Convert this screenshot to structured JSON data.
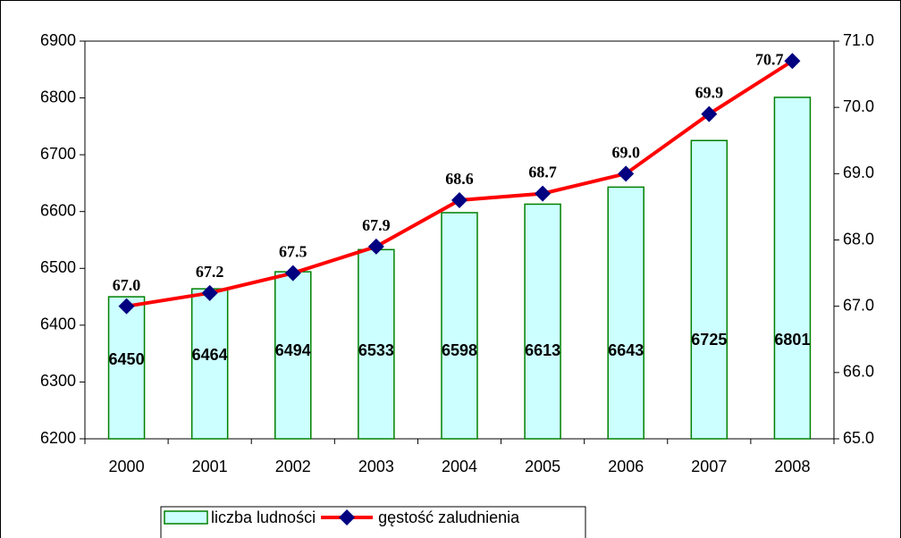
{
  "chart_data": {
    "type": "bar_line",
    "categories": [
      "2000",
      "2001",
      "2002",
      "2003",
      "2004",
      "2005",
      "2006",
      "2007",
      "2008"
    ],
    "series": [
      {
        "name": "liczba ludności",
        "type": "bar",
        "axis": "y",
        "color": "#ccffff",
        "edgecolor": "#008000",
        "values": [
          6450,
          6464,
          6494,
          6533,
          6598,
          6613,
          6643,
          6725,
          6801
        ]
      },
      {
        "name": "gęstość zaludnienia",
        "type": "line",
        "axis": "y2",
        "color": "#ff0000",
        "marker_color": "#000080",
        "values": [
          67.0,
          67.2,
          67.5,
          67.9,
          68.6,
          68.7,
          69.0,
          69.9,
          70.7
        ],
        "value_labels": [
          "67.0",
          "67.2",
          "67.5",
          "67.9",
          "68.6",
          "68.7",
          "69.0",
          "69.9",
          "70.7"
        ]
      }
    ],
    "ylim": [
      6200,
      6900
    ],
    "yticks": [
      6200,
      6300,
      6400,
      6500,
      6600,
      6700,
      6800,
      6900
    ],
    "y2lim": [
      65,
      71
    ],
    "y2ticks": [
      {
        "value": 65,
        "label": "65.0"
      },
      {
        "value": 66,
        "label": "66.0"
      },
      {
        "value": 67,
        "label": "67.0"
      },
      {
        "value": 68,
        "label": "68.0"
      },
      {
        "value": 69,
        "label": "69.0"
      },
      {
        "value": 70,
        "label": "70.0"
      },
      {
        "value": 71,
        "label": "71.0"
      }
    ],
    "grid": false,
    "legend": "bottom"
  }
}
